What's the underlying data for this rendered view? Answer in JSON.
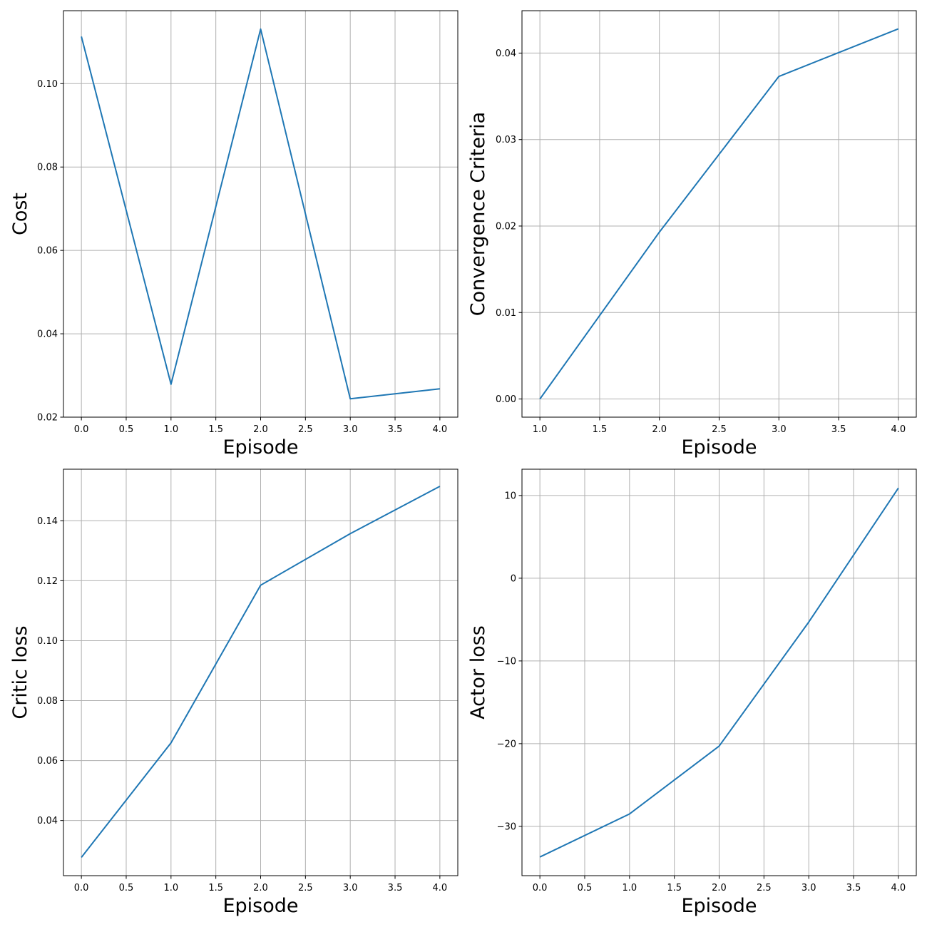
{
  "colors": {
    "series": "#1f77b4",
    "grid": "#b0b0b0",
    "axis": "#000000"
  },
  "chart_data": [
    {
      "type": "line",
      "xlabel": "Episode",
      "ylabel": "Cost",
      "grid": true,
      "xlim": [
        -0.2,
        4.2
      ],
      "ylim": [
        0.02,
        0.1175
      ],
      "xticks": [
        0.0,
        0.5,
        1.0,
        1.5,
        2.0,
        2.5,
        3.0,
        3.5,
        4.0
      ],
      "xtick_labels": [
        "0.0",
        "0.5",
        "1.0",
        "1.5",
        "2.0",
        "2.5",
        "3.0",
        "3.5",
        "4.0"
      ],
      "yticks": [
        0.02,
        0.04,
        0.06,
        0.08,
        0.1
      ],
      "ytick_labels": [
        "0.02",
        "0.04",
        "0.06",
        "0.08",
        "0.10"
      ],
      "x": [
        0,
        1,
        2,
        3,
        4
      ],
      "values": [
        0.1113,
        0.0279,
        0.1131,
        0.0244,
        0.0268
      ]
    },
    {
      "type": "line",
      "xlabel": "Episode",
      "ylabel": "Convergence Criteria",
      "grid": true,
      "xlim": [
        0.85,
        4.15
      ],
      "ylim": [
        -0.0021,
        0.0449
      ],
      "xticks": [
        1.0,
        1.5,
        2.0,
        2.5,
        3.0,
        3.5,
        4.0
      ],
      "xtick_labels": [
        "1.0",
        "1.5",
        "2.0",
        "2.5",
        "3.0",
        "3.5",
        "4.0"
      ],
      "yticks": [
        0.0,
        0.01,
        0.02,
        0.03,
        0.04
      ],
      "ytick_labels": [
        "0.00",
        "0.01",
        "0.02",
        "0.03",
        "0.04"
      ],
      "x": [
        1,
        2,
        3,
        4
      ],
      "values": [
        0.0,
        0.0193,
        0.0373,
        0.0428
      ]
    },
    {
      "type": "line",
      "xlabel": "Episode",
      "ylabel": "Critic loss",
      "grid": true,
      "xlim": [
        -0.2,
        4.2
      ],
      "ylim": [
        0.0216,
        0.1572
      ],
      "xticks": [
        0.0,
        0.5,
        1.0,
        1.5,
        2.0,
        2.5,
        3.0,
        3.5,
        4.0
      ],
      "xtick_labels": [
        "0.0",
        "0.5",
        "1.0",
        "1.5",
        "2.0",
        "2.5",
        "3.0",
        "3.5",
        "4.0"
      ],
      "yticks": [
        0.04,
        0.06,
        0.08,
        0.1,
        0.12,
        0.14
      ],
      "ytick_labels": [
        "0.04",
        "0.06",
        "0.08",
        "0.10",
        "0.12",
        "0.14"
      ],
      "x": [
        0,
        1,
        2,
        3,
        4
      ],
      "values": [
        0.0277,
        0.0659,
        0.1185,
        0.1357,
        0.1515
      ]
    },
    {
      "type": "line",
      "xlabel": "Episode",
      "ylabel": "Actor loss",
      "grid": true,
      "xlim": [
        -0.2,
        4.2
      ],
      "ylim": [
        -35.96,
        13.18
      ],
      "xticks": [
        0.0,
        0.5,
        1.0,
        1.5,
        2.0,
        2.5,
        3.0,
        3.5,
        4.0
      ],
      "xtick_labels": [
        "0.0",
        "0.5",
        "1.0",
        "1.5",
        "2.0",
        "2.5",
        "3.0",
        "3.5",
        "4.0"
      ],
      "yticks": [
        -30,
        -20,
        -10,
        0,
        10
      ],
      "ytick_labels": [
        "−30",
        "−20",
        "−10",
        "0",
        "10"
      ],
      "x": [
        0,
        1,
        2,
        3,
        4
      ],
      "values": [
        -33.7,
        -28.5,
        -20.3,
        -5.3,
        10.9
      ]
    }
  ]
}
